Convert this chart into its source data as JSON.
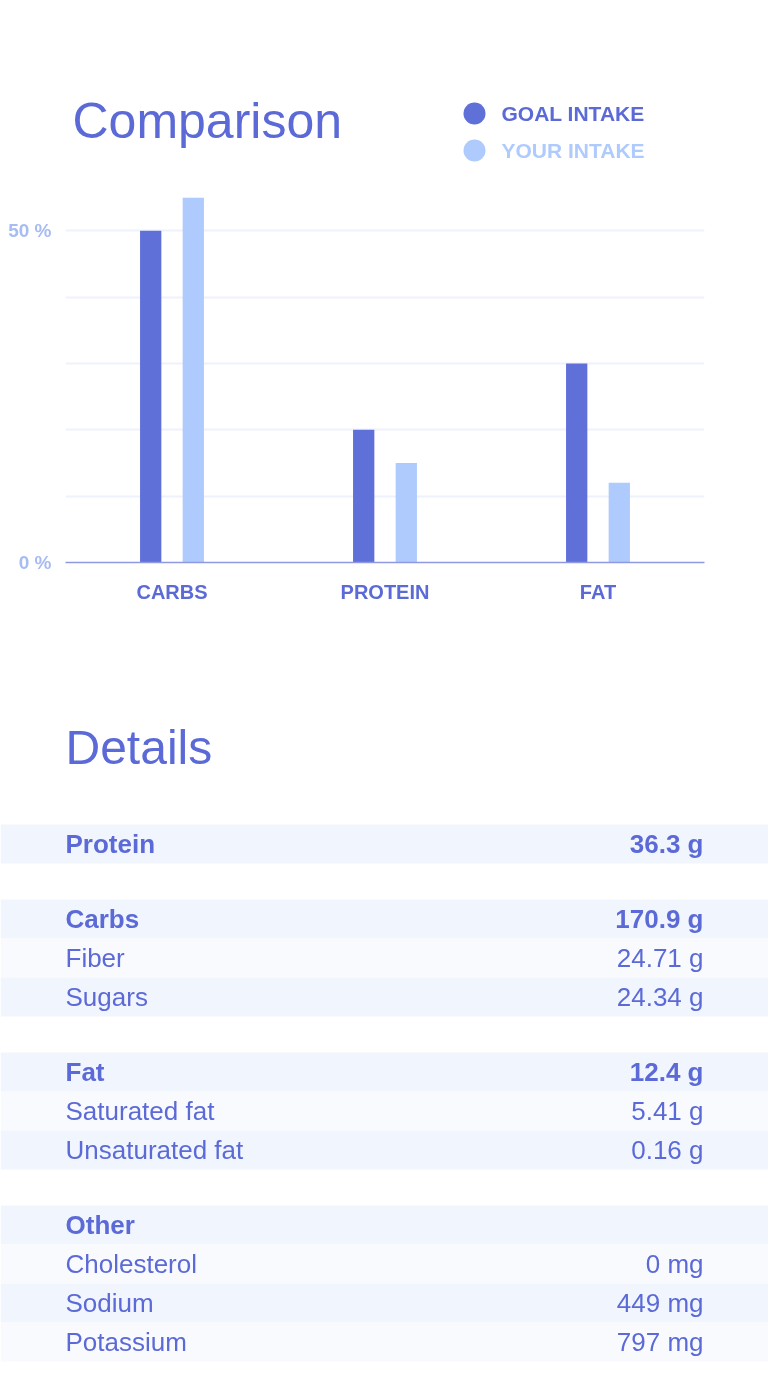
{
  "chart_data": [
    {
      "type": "bar",
      "title": "Comparison",
      "categories": [
        "CARBS",
        "PROTEIN",
        "FAT"
      ],
      "series": [
        {
          "name": "GOAL INTAKE",
          "color": "#5f70d9",
          "values": [
            50,
            20,
            30
          ]
        },
        {
          "name": "YOUR INTAKE",
          "color": "#afcbfd",
          "values": [
            55,
            15,
            12
          ]
        }
      ],
      "ylim": [
        0,
        55
      ],
      "yticks": [
        {
          "value": 0,
          "label": "0 %"
        },
        {
          "value": 10,
          "label": null
        },
        {
          "value": 20,
          "label": null
        },
        {
          "value": 30,
          "label": null
        },
        {
          "value": 40,
          "label": null
        },
        {
          "value": 50,
          "label": "50 %"
        }
      ],
      "grid": "y",
      "legend": "top right"
    },
    {
      "type": "other",
      "title": "Details",
      "categories": [
        "Protein",
        null,
        "Carbs",
        "Fiber",
        "Sugars",
        null,
        "Fat",
        "Saturated fat",
        "Unsaturated fat",
        null,
        "Other",
        "Cholesterol",
        "Sodium",
        "Potassium"
      ],
      "value_labels": [
        "36.3 g",
        null,
        "170.9 g",
        "24.71 g",
        "24.34 g",
        null,
        "12.4 g",
        "5.41 g",
        "0.16 g",
        null,
        null,
        "0 mg",
        "449 mg",
        "797 mg"
      ]
    }
  ]
}
